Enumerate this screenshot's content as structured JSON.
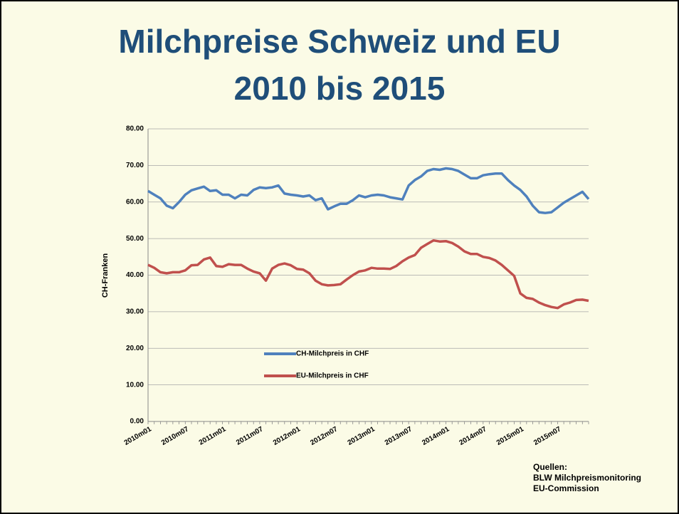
{
  "chart_data": {
    "type": "line",
    "title": "Milchpreise Schweiz und EU",
    "subtitle": "2010 bis 2015",
    "y_label": "CH-Franken",
    "source": [
      "Quellen:",
      "BLW Milchpreismonitoring",
      "EU-Commission"
    ],
    "categories": [
      "2010m01",
      null,
      null,
      null,
      null,
      null,
      "2010m07",
      null,
      null,
      null,
      null,
      null,
      "2011m01",
      null,
      null,
      null,
      null,
      null,
      "2011m07",
      null,
      null,
      null,
      null,
      null,
      "2012m01",
      null,
      null,
      null,
      null,
      null,
      "2012m07",
      null,
      null,
      null,
      null,
      null,
      "2013m01",
      null,
      null,
      null,
      null,
      null,
      "2013m07",
      null,
      null,
      null,
      null,
      null,
      "2014m01",
      null,
      null,
      null,
      null,
      null,
      "2014m07",
      null,
      null,
      null,
      null,
      null,
      "2015m01",
      null,
      null,
      null,
      null,
      null,
      "2015m07",
      null,
      null,
      null,
      null,
      null
    ],
    "series": [
      {
        "name": "CH-Milchpreis in CHF",
        "color": "#4f81bd",
        "values": [
          63,
          62,
          61,
          59,
          58.3,
          60,
          62,
          63.2,
          63.7,
          64.2,
          63,
          63.2,
          62,
          62,
          61,
          62,
          61.8,
          63.3,
          64,
          63.8,
          64,
          64.5,
          62.3,
          62,
          61.8,
          61.5,
          61.8,
          60.5,
          61,
          58,
          58.8,
          59.5,
          59.5,
          60.5,
          61.8,
          61.3,
          61.8,
          62,
          61.8,
          61.3,
          61,
          60.7,
          64.5,
          66,
          67,
          68.5,
          69,
          68.8,
          69.2,
          69,
          68.5,
          67.5,
          66.5,
          66.5,
          67.3,
          67.6,
          67.8,
          67.8,
          66,
          64.5,
          63.3,
          61.5,
          59,
          57.2,
          57,
          57.2,
          58.5,
          59.8,
          60.8,
          61.8,
          62.8,
          60.8
        ]
      },
      {
        "name": "EU-Milchpreis in CHF",
        "color": "#c0504d",
        "values": [
          42.8,
          42,
          40.8,
          40.5,
          40.8,
          40.8,
          41.3,
          42.7,
          42.8,
          44.3,
          44.8,
          42.5,
          42.3,
          43,
          42.8,
          42.8,
          41.8,
          41,
          40.5,
          38.5,
          41.8,
          42.8,
          43.2,
          42.7,
          41.7,
          41.5,
          40.5,
          38.5,
          37.5,
          37.2,
          37.3,
          37.5,
          38.8,
          40,
          41,
          41.3,
          42,
          41.8,
          41.8,
          41.7,
          42.5,
          43.8,
          44.8,
          45.5,
          47.5,
          48.5,
          49.5,
          49.2,
          49.3,
          48.8,
          47.8,
          46.5,
          45.8,
          45.8,
          45,
          44.7,
          44,
          42.8,
          41.3,
          39.8,
          35,
          33.8,
          33.5,
          32.5,
          31.8,
          31.3,
          31,
          32,
          32.5,
          33.2,
          33.3,
          33
        ]
      }
    ],
    "ylim": [
      0,
      80
    ],
    "yticks": [
      {
        "value": 0,
        "label": "0.00"
      },
      {
        "value": 10,
        "label": "10.00"
      },
      {
        "value": 20,
        "label": "20.00"
      },
      {
        "value": 30,
        "label": "30.00"
      },
      {
        "value": 40,
        "label": "40.00"
      },
      {
        "value": 50,
        "label": "50.00"
      },
      {
        "value": 60,
        "label": "60.00"
      },
      {
        "value": 70,
        "label": "70.00"
      },
      {
        "value": 80,
        "label": "80.00"
      }
    ],
    "grid": true
  }
}
